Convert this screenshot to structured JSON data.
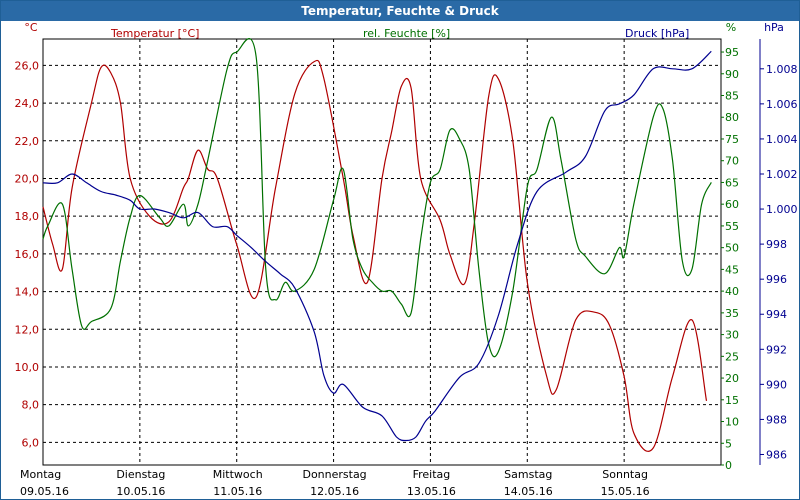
{
  "window": {
    "title": "Temperatur, Feuchte & Druck"
  },
  "colors": {
    "temperature": "#b00000",
    "humidity": "#007000",
    "pressure": "#000090",
    "title_bar": "#2a6aa6",
    "grid": "#000000"
  },
  "chart_data": {
    "type": "line",
    "title": "Temperatur, Feuchte & Druck",
    "grid": true,
    "x_days": [
      {
        "day": "Montag",
        "date": "09.05.16"
      },
      {
        "day": "Dienstag",
        "date": "10.05.16"
      },
      {
        "day": "Mittwoch",
        "date": "11.05.16"
      },
      {
        "day": "Donnerstag",
        "date": "12.05.16"
      },
      {
        "day": "Freitag",
        "date": "13.05.16"
      },
      {
        "day": "Samstag",
        "date": "14.05.16"
      },
      {
        "day": "Sonntag",
        "date": "15.05.16"
      }
    ],
    "axes": {
      "temperature": {
        "label": "Temperatur [°C]",
        "unit": "°C",
        "ylim": [
          4.8,
          27.4
        ],
        "ticks": [
          "26,0",
          "24,0",
          "22,0",
          "20,0",
          "18,0",
          "16,0",
          "14,0",
          "12,0",
          "10,0",
          "8,0",
          "6,0"
        ]
      },
      "humidity": {
        "label": "rel. Feuchte [%]",
        "unit": "%",
        "ylim": [
          0,
          98
        ],
        "ticks": [
          "95",
          "90",
          "85",
          "80",
          "75",
          "70",
          "65",
          "60",
          "55",
          "50",
          "45",
          "40",
          "35",
          "30",
          "25",
          "20",
          "15",
          "10",
          "5",
          "0"
        ]
      },
      "pressure": {
        "label": "Druck [hPa]",
        "unit": "hPa",
        "ylim": [
          985.4,
          1009.7
        ],
        "ticks": [
          "1.008",
          "1.006",
          "1.004",
          "1.002",
          "1.000",
          "998",
          "996",
          "994",
          "992",
          "990",
          "988",
          "986"
        ]
      }
    },
    "series": [
      {
        "name": "Temperatur [°C]",
        "axis": "temperature",
        "x": [
          0,
          0.1,
          0.2,
          0.3,
          0.5,
          0.6,
          0.7,
          0.8,
          0.9,
          1.1,
          1.3,
          1.45,
          1.5,
          1.6,
          1.7,
          1.8,
          2,
          2.2,
          2.4,
          2.6,
          2.8,
          2.9,
          3.1,
          3.2,
          3.35,
          3.5,
          3.6,
          3.7,
          3.8,
          3.9,
          4.1,
          4.2,
          4.35,
          4.45,
          4.6,
          4.7,
          4.85,
          5,
          5.2,
          5.3,
          5.5,
          5.7,
          5.85,
          6,
          6.1,
          6.3,
          6.5,
          6.7,
          6.85
        ],
        "y": [
          18.5,
          16.5,
          15.2,
          19.5,
          24,
          25.9,
          25.6,
          24,
          20,
          18,
          17.7,
          19.5,
          20,
          21.5,
          20.5,
          20,
          16.5,
          13.7,
          19.5,
          24.5,
          26.2,
          25.3,
          20,
          17,
          14.5,
          20,
          22.5,
          24.9,
          24.8,
          20,
          17.8,
          16,
          14.4,
          17.5,
          24.3,
          25.3,
          22,
          14.5,
          9.5,
          8.8,
          12.5,
          12.9,
          12.2,
          9.5,
          6.5,
          5.7,
          9.5,
          12.5,
          8.2
        ]
      },
      {
        "name": "rel. Feuchte [%]",
        "axis": "humidity",
        "x": [
          0,
          0.05,
          0.2,
          0.3,
          0.4,
          0.5,
          0.7,
          0.8,
          0.9,
          1,
          1.2,
          1.3,
          1.45,
          1.5,
          1.6,
          1.7,
          1.9,
          2,
          2.2,
          2.3,
          2.4,
          2.5,
          2.6,
          2.8,
          3,
          3.1,
          3.2,
          3.3,
          3.4,
          3.5,
          3.6,
          3.7,
          3.8,
          3.9,
          4,
          4.1,
          4.2,
          4.3,
          4.4,
          4.5,
          4.6,
          4.7,
          4.85,
          5,
          5.1,
          5.25,
          5.35,
          5.5,
          5.6,
          5.8,
          5.95,
          6,
          6.1,
          6.3,
          6.4,
          6.5,
          6.6,
          6.7,
          6.8,
          6.9
        ],
        "y": [
          52,
          55,
          60,
          45,
          32,
          33,
          36,
          47,
          57,
          62,
          57,
          55,
          60,
          55,
          60,
          70,
          91,
          95,
          94,
          45,
          38,
          42,
          40,
          45,
          61,
          68,
          52,
          45,
          42,
          40,
          40,
          37,
          35,
          52,
          65,
          68,
          77,
          75,
          68,
          45,
          28,
          26,
          40,
          64,
          68,
          80,
          70,
          52,
          48,
          44,
          50,
          48,
          60,
          80,
          82,
          70,
          47,
          45,
          60,
          65
        ]
      },
      {
        "name": "Druck [hPa]",
        "axis": "pressure",
        "x": [
          0,
          0.15,
          0.3,
          0.45,
          0.6,
          0.75,
          0.9,
          1,
          1.15,
          1.3,
          1.45,
          1.6,
          1.75,
          1.9,
          2,
          2.15,
          2.3,
          2.45,
          2.6,
          2.8,
          2.9,
          3,
          3.1,
          3.3,
          3.5,
          3.65,
          3.75,
          3.85,
          3.95,
          4.05,
          4.3,
          4.5,
          4.7,
          4.9,
          5.1,
          5.4,
          5.6,
          5.8,
          5.95,
          6.1,
          6.3,
          6.5,
          6.7,
          6.9
        ],
        "y": [
          1001.5,
          1001.5,
          1002,
          1001.5,
          1001,
          1000.8,
          1000.5,
          1000,
          1000,
          999.8,
          999.5,
          999.8,
          999,
          999,
          998.5,
          997.8,
          997,
          996.3,
          995.5,
          993,
          990.5,
          989.5,
          990,
          988.7,
          988.2,
          987,
          986.8,
          987,
          987.9,
          988.5,
          990.4,
          991.2,
          993.9,
          998,
          1001,
          1002.1,
          1003,
          1005.6,
          1006,
          1006.5,
          1008,
          1008,
          1008,
          1009
        ]
      }
    ]
  }
}
